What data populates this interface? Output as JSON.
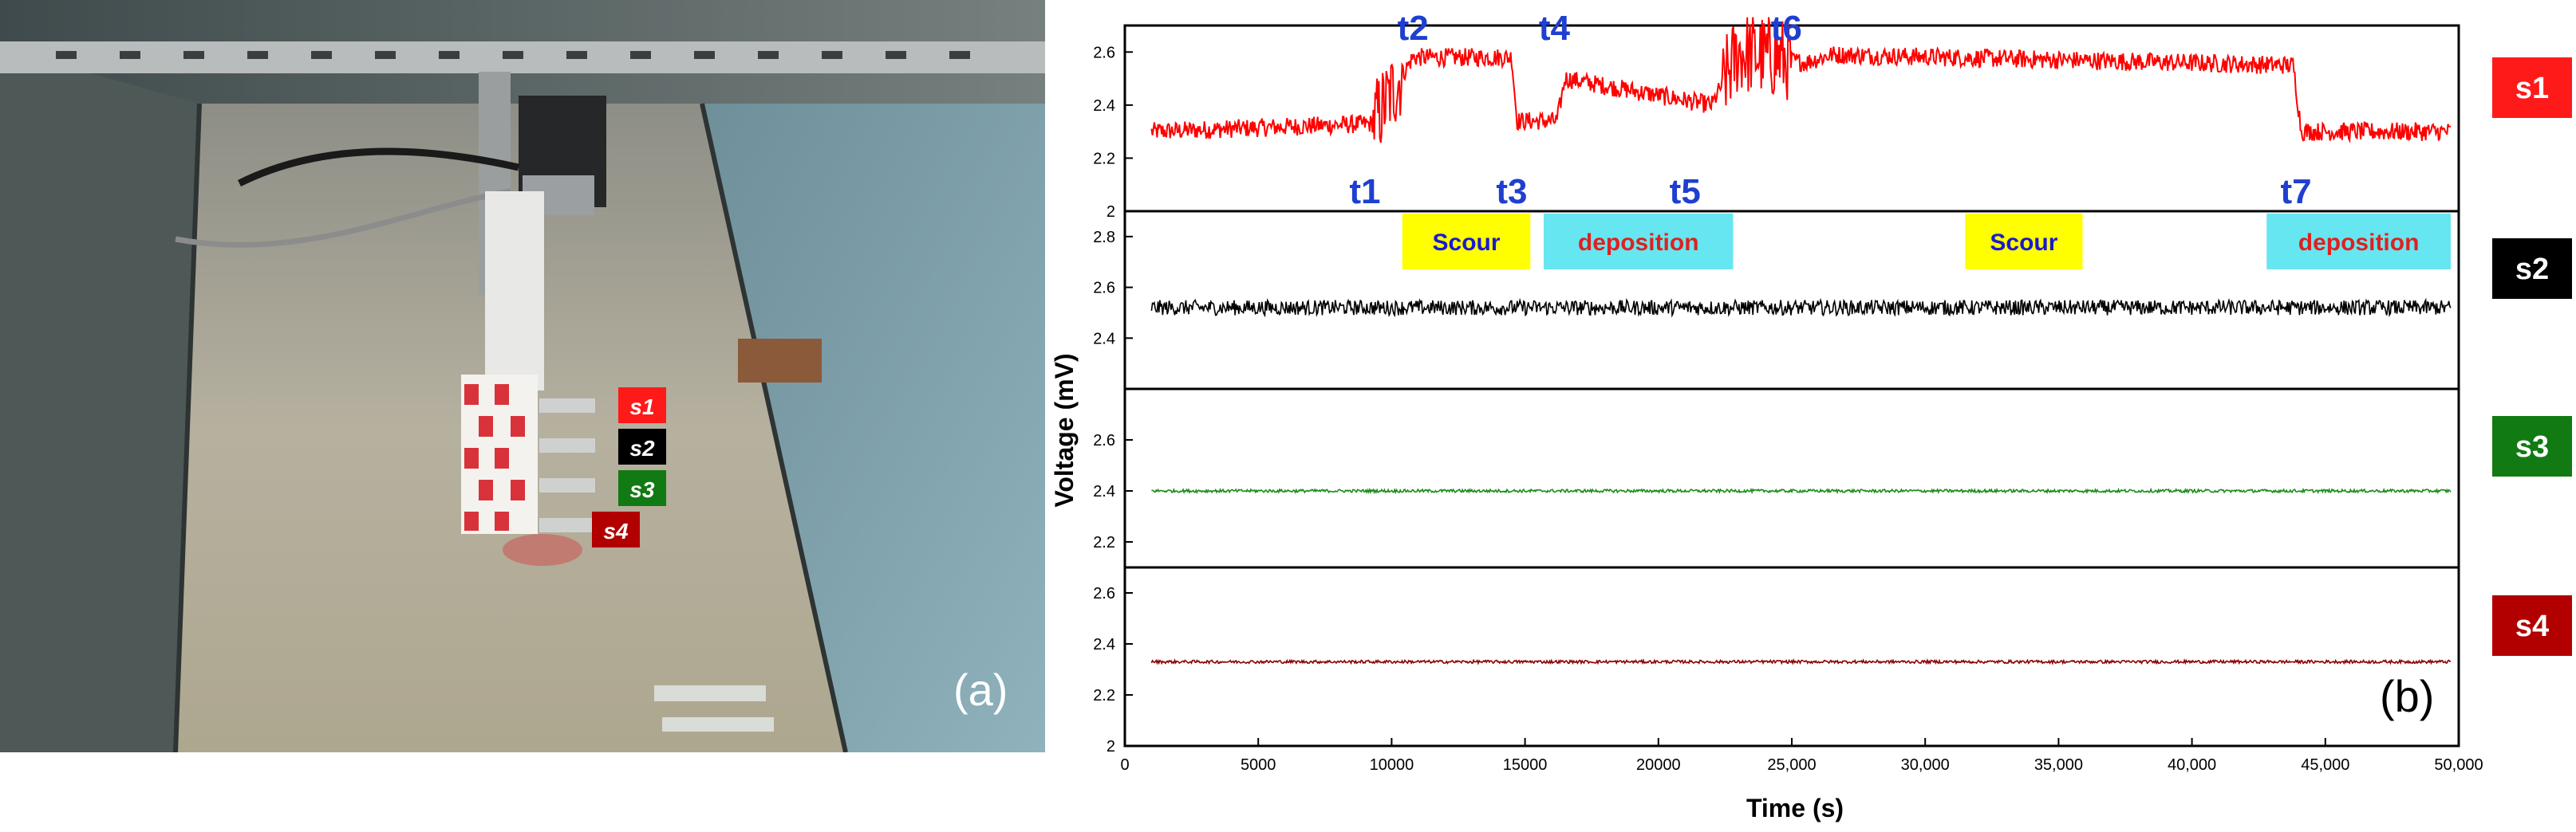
{
  "photo": {
    "panel_label": "(a)",
    "sensor_tags": [
      {
        "label": "s1",
        "color": "#ff1a1a"
      },
      {
        "label": "s2",
        "color": "#000000"
      },
      {
        "label": "s3",
        "color": "#127a12"
      },
      {
        "label": "s4",
        "color": "#b20000"
      }
    ]
  },
  "chart_data": {
    "type": "line",
    "panel_label": "(b)",
    "xlabel": "Time (s)",
    "ylabel": "Voltage (mV)",
    "xlim": [
      0,
      50000
    ],
    "x_ticks": [
      0,
      5000,
      10000,
      15000,
      20000,
      25000,
      30000,
      35000,
      40000,
      45000,
      50000
    ],
    "x_tick_labels": [
      "0",
      "5000",
      "10000",
      "15000",
      "20000",
      "25,000",
      "30,000",
      "35,000",
      "40,000",
      "45,000",
      "50,000"
    ],
    "panels": [
      {
        "name": "s1",
        "color": "#ff0000",
        "ylim": [
          2.0,
          2.7
        ],
        "yticks": [
          "2",
          "2.2",
          "2.4",
          "2.6"
        ],
        "levels": [
          [
            1000,
            2.3
          ],
          [
            9300,
            2.33
          ],
          [
            10800,
            2.58
          ],
          [
            14500,
            2.58
          ],
          [
            14700,
            2.34
          ],
          [
            16200,
            2.34
          ],
          [
            16500,
            2.5
          ],
          [
            22000,
            2.4
          ],
          [
            23000,
            2.6
          ],
          [
            25500,
            2.56
          ],
          [
            26500,
            2.59
          ],
          [
            43800,
            2.55
          ],
          [
            44100,
            2.3
          ],
          [
            49700,
            2.3
          ]
        ]
      },
      {
        "name": "s2",
        "color": "#000000",
        "ylim": [
          2.2,
          2.9
        ],
        "yticks": [
          "2.4",
          "2.6",
          "2.8"
        ],
        "levels": [
          [
            1000,
            2.52
          ],
          [
            49700,
            2.52
          ]
        ]
      },
      {
        "name": "s3",
        "color": "#1a8c1a",
        "ylim": [
          2.1,
          2.8
        ],
        "yticks": [
          "2.2",
          "2.4",
          "2.6"
        ],
        "levels": [
          [
            1000,
            2.4
          ],
          [
            49700,
            2.4
          ]
        ]
      },
      {
        "name": "s4",
        "color": "#8b0000",
        "ylim": [
          2.0,
          2.7
        ],
        "yticks": [
          "2",
          "2.2",
          "2.4",
          "2.6"
        ],
        "levels": [
          [
            1000,
            2.33
          ],
          [
            49700,
            2.33
          ]
        ]
      }
    ],
    "events": [
      {
        "label": "t1",
        "x": 9000,
        "pos": "below"
      },
      {
        "label": "t2",
        "x": 10800,
        "pos": "above"
      },
      {
        "label": "t3",
        "x": 14500,
        "pos": "below"
      },
      {
        "label": "t4",
        "x": 16100,
        "pos": "above"
      },
      {
        "label": "t5",
        "x": 21000,
        "pos": "below"
      },
      {
        "label": "t6",
        "x": 24800,
        "pos": "above"
      },
      {
        "label": "t7",
        "x": 43900,
        "pos": "below"
      }
    ],
    "annotations": [
      {
        "text": "Scour",
        "x0": 10400,
        "x1": 15200,
        "fill": "#ffff00",
        "color": "#1a1ad0"
      },
      {
        "text": "deposition",
        "x0": 15700,
        "x1": 22800,
        "fill": "#66e6f0",
        "color": "#e02020"
      },
      {
        "text": "Scour",
        "x0": 31500,
        "x1": 35900,
        "fill": "#ffff00",
        "color": "#1a1ad0"
      },
      {
        "text": "deposition",
        "x0": 42800,
        "x1": 49700,
        "fill": "#66e6f0",
        "color": "#e02020"
      }
    ],
    "tags": [
      {
        "label": "s1",
        "color": "#ff1a1a"
      },
      {
        "label": "s2",
        "color": "#000000"
      },
      {
        "label": "s3",
        "color": "#127a12"
      },
      {
        "label": "s4",
        "color": "#b20000"
      }
    ]
  }
}
